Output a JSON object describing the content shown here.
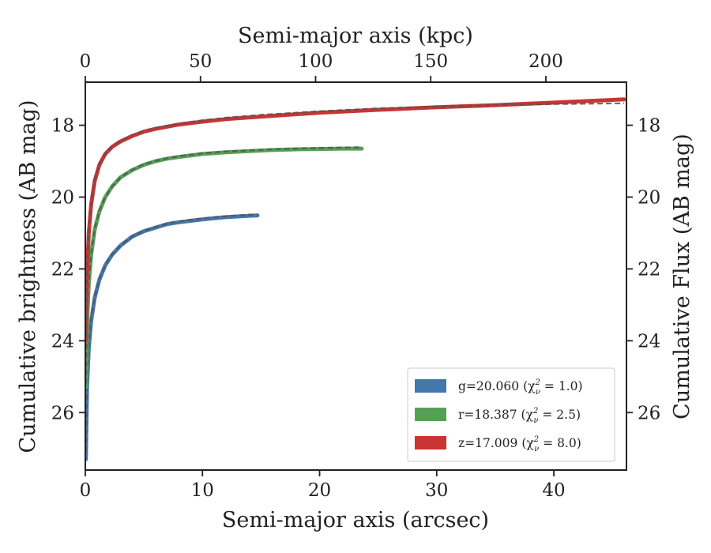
{
  "chart_data": {
    "type": "line",
    "xlabel": "Semi-major axis (arcsec)",
    "ylabel": "Cumulative brightness (AB mag)",
    "ylabel_right": "Cumulative Flux (AB mag)",
    "xlabel_top": "Semi-major axis (kpc)",
    "xlim": [
      0,
      46.2
    ],
    "ylim": [
      27.6,
      16.8
    ],
    "xlim_top": [
      0,
      235
    ],
    "y_inverted": true,
    "xticks": [
      0,
      10,
      20,
      30,
      40
    ],
    "xtick_labels": [
      "0",
      "10",
      "20",
      "30",
      "40"
    ],
    "yticks": [
      18,
      20,
      22,
      24,
      26
    ],
    "ytick_labels": [
      "18",
      "20",
      "22",
      "24",
      "26"
    ],
    "xticks_top": [
      0,
      50,
      100,
      150,
      200
    ],
    "xtick_labels_top": [
      "0",
      "50",
      "100",
      "150",
      "200"
    ],
    "legend_position": "lower-right",
    "legend": [
      {
        "text": "g=20.060",
        "chi_text": "(χ",
        "chi_sup": "2",
        "chi_sub": "ν",
        "chi_val": " = 1.0)",
        "color": "#4477aa"
      },
      {
        "text": "r=18.387",
        "chi_text": "(χ",
        "chi_sup": "2",
        "chi_sub": "ν",
        "chi_val": " = 2.5)",
        "color": "#55a055"
      },
      {
        "text": "z=17.009",
        "chi_text": "(χ",
        "chi_sup": "2",
        "chi_sub": "ν",
        "chi_val": " = 8.0)",
        "color": "#cc3333"
      }
    ],
    "series": [
      {
        "name": "g",
        "color": "#4477aa",
        "model_color": "#555555",
        "x": [
          0.05,
          0.15,
          0.3,
          0.5,
          0.8,
          1.2,
          1.7,
          2.3,
          3.0,
          4.0,
          5.0,
          6.0,
          7.0,
          8.0,
          9.0,
          10.0,
          11.0,
          12.0,
          13.0,
          14.0,
          14.7
        ],
        "y": [
          27.3,
          25.3,
          24.2,
          23.45,
          22.8,
          22.3,
          21.9,
          21.6,
          21.35,
          21.1,
          20.95,
          20.85,
          20.75,
          20.7,
          20.66,
          20.62,
          20.59,
          20.56,
          20.54,
          20.52,
          20.51
        ],
        "model_y": [
          27.1,
          25.2,
          24.15,
          23.4,
          22.78,
          22.28,
          21.9,
          21.6,
          21.35,
          21.1,
          20.94,
          20.83,
          20.74,
          20.68,
          20.63,
          20.59,
          20.56,
          20.53,
          20.51,
          20.49,
          20.48
        ]
      },
      {
        "name": "r",
        "color": "#55a055",
        "model_color": "#555555",
        "x": [
          0.05,
          0.15,
          0.3,
          0.5,
          0.8,
          1.2,
          1.7,
          2.3,
          3.0,
          4.0,
          5.0,
          6.0,
          7.0,
          8.0,
          10.0,
          12.0,
          14.0,
          16.0,
          18.0,
          20.0,
          22.0,
          23.6
        ],
        "y": [
          25.3,
          23.5,
          22.4,
          21.6,
          20.9,
          20.4,
          20.0,
          19.7,
          19.45,
          19.25,
          19.1,
          19.0,
          18.93,
          18.88,
          18.8,
          18.75,
          18.72,
          18.69,
          18.67,
          18.66,
          18.65,
          18.65
        ],
        "model_y": [
          25.2,
          23.45,
          22.35,
          21.58,
          20.88,
          20.38,
          20.0,
          19.7,
          19.45,
          19.24,
          19.09,
          18.99,
          18.92,
          18.86,
          18.78,
          18.73,
          18.7,
          18.67,
          18.65,
          18.63,
          18.62,
          18.61
        ]
      },
      {
        "name": "z",
        "color": "#cc3333",
        "model_color": "#555555",
        "x": [
          0.05,
          0.15,
          0.3,
          0.5,
          0.8,
          1.2,
          1.7,
          2.3,
          3.0,
          4.0,
          5.0,
          6.0,
          8.0,
          10.0,
          12.0,
          15.0,
          20.0,
          25.0,
          30.0,
          35.0,
          40.0,
          46.0
        ],
        "y": [
          24.0,
          22.1,
          21.0,
          20.2,
          19.55,
          19.1,
          18.8,
          18.6,
          18.45,
          18.3,
          18.18,
          18.1,
          17.98,
          17.9,
          17.83,
          17.76,
          17.65,
          17.57,
          17.5,
          17.44,
          17.37,
          17.28
        ],
        "model_y": [
          23.9,
          22.05,
          20.95,
          20.18,
          19.53,
          19.08,
          18.79,
          18.59,
          18.44,
          18.28,
          18.16,
          18.07,
          17.95,
          17.86,
          17.79,
          17.71,
          17.61,
          17.53,
          17.48,
          17.44,
          17.41,
          17.39
        ]
      }
    ]
  }
}
